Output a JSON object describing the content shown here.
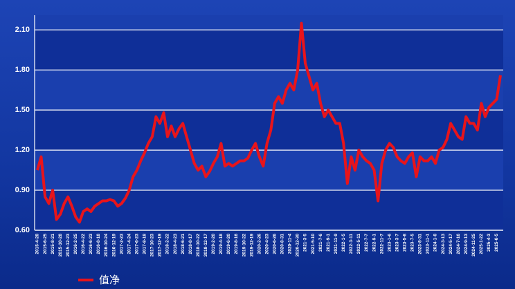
{
  "chart_data": {
    "type": "line",
    "categories": [
      "2015-4-28",
      null,
      "2015-6-25",
      null,
      "2015-8-21",
      null,
      "2015-10-28",
      null,
      "2015-12-23",
      null,
      "2016-2-25",
      null,
      "2016-4-22",
      null,
      "2016-6-23",
      null,
      "2016-8-18",
      null,
      "2016-10-24",
      null,
      "2016-12-19",
      null,
      "2017-2-23",
      null,
      "2017-4-24",
      null,
      "2017-6-23",
      null,
      "2017-8-18",
      null,
      "2017-10-23",
      null,
      "2017-12-19",
      null,
      "2018-2-22",
      null,
      "2018-4-23",
      null,
      "2018-6-21",
      null,
      "2018-8-17",
      null,
      "2018-10-22",
      null,
      "2018-12-17",
      null,
      "2019-2-20",
      null,
      "2019-4-18",
      null,
      "2019-6-20",
      null,
      "2019-8-16",
      null,
      "2019-10-22",
      null,
      "2019-12-19",
      null,
      "2020-2-26",
      null,
      "2020-4-23",
      null,
      "2020-6-26",
      null,
      "2020-8-31",
      null,
      "2020-11-4",
      null,
      "2020-12-30",
      null,
      "2021-3-5",
      null,
      "2021-5-10",
      null,
      "2021-7-6",
      null,
      "2021-9-1",
      null,
      "2021-11-9",
      null,
      "2022-1-5",
      null,
      "2022-3-11",
      null,
      "2022-5-11",
      null,
      "2022-7-7",
      null,
      "2022-9-1",
      null,
      "2022-11-7",
      null,
      "2023-1-6",
      null,
      "2023-3-7",
      null,
      "2023-5-8",
      null,
      "2023-7-5",
      null,
      "2023-8-31",
      null,
      "2023-11-1",
      null,
      "2024-1-8",
      null,
      "2024-3-13",
      null,
      "2024-5-17",
      null,
      "2024-7-16",
      null,
      "2024-9-13",
      null,
      "2024-11-25",
      null,
      "2025-1-22",
      null,
      "2025-4-3",
      null,
      "2025-6-5",
      null
    ],
    "series": [
      {
        "name": "值净",
        "color": "#e8141b",
        "values": [
          1.05,
          1.15,
          0.85,
          0.8,
          0.9,
          0.68,
          0.72,
          0.8,
          0.85,
          0.78,
          0.7,
          0.66,
          0.74,
          0.76,
          0.74,
          0.78,
          0.8,
          0.82,
          0.82,
          0.83,
          0.82,
          0.78,
          0.8,
          0.84,
          0.9,
          1.0,
          1.05,
          1.12,
          1.18,
          1.25,
          1.3,
          1.45,
          1.4,
          1.48,
          1.3,
          1.38,
          1.3,
          1.36,
          1.4,
          1.3,
          1.2,
          1.1,
          1.05,
          1.08,
          1.0,
          1.04,
          1.1,
          1.15,
          1.25,
          1.08,
          1.1,
          1.08,
          1.1,
          1.12,
          1.12,
          1.14,
          1.2,
          1.25,
          1.15,
          1.08,
          1.25,
          1.35,
          1.55,
          1.6,
          1.55,
          1.65,
          1.7,
          1.65,
          1.8,
          2.15,
          1.85,
          1.75,
          1.65,
          1.7,
          1.55,
          1.45,
          1.5,
          1.45,
          1.4,
          1.4,
          1.25,
          0.95,
          1.15,
          1.05,
          1.2,
          1.15,
          1.12,
          1.1,
          1.05,
          0.82,
          1.1,
          1.2,
          1.25,
          1.22,
          1.15,
          1.12,
          1.1,
          1.15,
          1.18,
          1.0,
          1.15,
          1.12,
          1.12,
          1.15,
          1.1,
          1.2,
          1.22,
          1.28,
          1.4,
          1.35,
          1.3,
          1.28,
          1.45,
          1.4,
          1.4,
          1.35,
          1.55,
          1.45,
          1.52,
          1.55,
          1.58,
          1.76
        ]
      }
    ],
    "ylim": [
      0.6,
      2.21
    ],
    "yticks": [
      {
        "value": 0.6,
        "label": "0.60"
      },
      {
        "value": 0.9,
        "label": "0.90"
      },
      {
        "value": 1.2,
        "label": "1.20"
      },
      {
        "value": 1.5,
        "label": "1.50"
      },
      {
        "value": 1.8,
        "label": "1.80"
      },
      {
        "value": 2.1,
        "label": "2.10"
      }
    ],
    "grid": true
  }
}
